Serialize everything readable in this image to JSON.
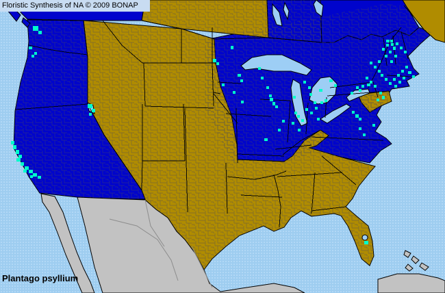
{
  "header": {
    "title": "Floristic Synthesis of NA © 2009 BONAP"
  },
  "species_label": "Plantago psyllium",
  "legend": {
    "state_present_color": "#0004cc",
    "county_present_color": "#00ffcc",
    "state_absent_color": "#b08c00",
    "outside_area_color": "#c2c2c2",
    "water_color": "#9dcef5"
  },
  "map": {
    "regions": {
      "bc": {
        "name": "British Columbia",
        "status": "present"
      },
      "bc-island-1": {
        "name": "Vancouver Island",
        "status": "present"
      },
      "bc-island-2": {
        "name": "Coastal island",
        "status": "present"
      },
      "prairies": {
        "name": "Alberta / Saskatchewan",
        "status": "absent"
      },
      "manitoba": {
        "name": "Manitoba",
        "status": "present"
      },
      "east-canada": {
        "name": "Ontario / Québec",
        "status": "present"
      },
      "maritimes": {
        "name": "New Brunswick / Nova Scotia",
        "status": "absent"
      },
      "pacific": {
        "name": "Washington / Oregon / California",
        "status": "present"
      },
      "midwest-northeast": {
        "name": "Upper Midwest / Northeast / Mid-Atlantic",
        "status": "present"
      },
      "interior-south": {
        "name": "Interior West, Plains, South & Southeast",
        "status": "absent"
      },
      "md-de": {
        "name": "Maryland / Delaware",
        "status": "absent"
      },
      "mexico": {
        "name": "Mexico",
        "status": "outside"
      },
      "baja": {
        "name": "Baja California",
        "status": "outside"
      },
      "cuba": {
        "name": "Cuba",
        "status": "outside"
      },
      "bahama-1": {
        "name": "Bahamas",
        "status": "outside"
      },
      "bahama-2": {
        "name": "Bahamas",
        "status": "outside"
      },
      "bahama-3": {
        "name": "Bahamas",
        "status": "outside"
      },
      "bahama-4": {
        "name": "Bahamas",
        "status": "outside"
      }
    },
    "county_occurrences": [
      [
        48,
        38,
        8,
        7
      ],
      [
        56,
        45,
        5,
        5
      ],
      [
        42,
        68,
        5,
        4
      ],
      [
        50,
        76,
        4,
        4
      ],
      [
        46,
        80,
        4,
        4
      ],
      [
        16,
        206,
        5,
        5
      ],
      [
        19,
        212,
        5,
        6
      ],
      [
        23,
        219,
        5,
        6
      ],
      [
        27,
        226,
        5,
        5
      ],
      [
        24,
        231,
        6,
        5
      ],
      [
        30,
        237,
        5,
        5
      ],
      [
        36,
        243,
        6,
        5
      ],
      [
        42,
        248,
        6,
        5
      ],
      [
        34,
        248,
        5,
        4
      ],
      [
        48,
        253,
        6,
        5
      ],
      [
        55,
        257,
        5,
        4
      ],
      [
        44,
        256,
        4,
        4
      ],
      [
        128,
        152,
        7,
        6
      ],
      [
        134,
        159,
        5,
        5
      ],
      [
        130,
        165,
        4,
        4
      ],
      [
        311,
        86,
        5,
        5
      ],
      [
        316,
        91,
        4,
        4
      ],
      [
        337,
        67,
        4,
        5
      ],
      [
        347,
        108,
        5,
        4
      ],
      [
        351,
        116,
        4,
        4
      ],
      [
        324,
        122,
        4,
        4
      ],
      [
        352,
        147,
        4,
        4
      ],
      [
        340,
        133,
        4,
        4
      ],
      [
        381,
        112,
        4,
        4
      ],
      [
        389,
        126,
        4,
        4
      ],
      [
        377,
        98,
        4,
        4
      ],
      [
        393,
        138,
        4,
        4
      ],
      [
        394,
        143,
        5,
        5
      ],
      [
        398,
        149,
        4,
        5
      ],
      [
        402,
        154,
        4,
        4
      ],
      [
        412,
        175,
        4,
        4
      ],
      [
        406,
        188,
        4,
        4
      ],
      [
        386,
        202,
        5,
        4
      ],
      [
        443,
        118,
        4,
        4
      ],
      [
        450,
        126,
        4,
        4
      ],
      [
        466,
        130,
        5,
        4
      ],
      [
        458,
        148,
        4,
        4
      ],
      [
        446,
        158,
        4,
        4
      ],
      [
        428,
        140,
        4,
        4
      ],
      [
        434,
        168,
        4,
        4
      ],
      [
        440,
        174,
        4,
        4
      ],
      [
        452,
        136,
        4,
        4
      ],
      [
        430,
        163,
        4,
        4
      ],
      [
        426,
        178,
        4,
        4
      ],
      [
        435,
        188,
        4,
        4
      ],
      [
        453,
        163,
        4,
        4
      ],
      [
        460,
        156,
        4,
        4
      ],
      [
        468,
        148,
        4,
        4
      ],
      [
        474,
        145,
        4,
        4
      ],
      [
        463,
        172,
        4,
        4
      ],
      [
        481,
        116,
        5,
        4
      ],
      [
        488,
        123,
        4,
        4
      ],
      [
        564,
        58,
        5,
        4
      ],
      [
        571,
        63,
        4,
        4
      ],
      [
        540,
        90,
        4,
        4
      ],
      [
        546,
        96,
        4,
        4
      ],
      [
        552,
        102,
        4,
        4
      ],
      [
        534,
        112,
        4,
        4
      ],
      [
        540,
        118,
        4,
        4
      ],
      [
        546,
        124,
        4,
        4
      ],
      [
        528,
        124,
        4,
        4
      ],
      [
        552,
        88,
        4,
        4
      ],
      [
        520,
        126,
        4,
        4
      ],
      [
        512,
        134,
        4,
        4
      ],
      [
        558,
        70,
        4,
        4
      ],
      [
        564,
        64,
        4,
        4
      ],
      [
        570,
        58,
        4,
        4
      ],
      [
        562,
        80,
        4,
        4
      ],
      [
        568,
        74,
        4,
        4
      ],
      [
        574,
        68,
        4,
        5
      ],
      [
        576,
        80,
        4,
        4
      ],
      [
        570,
        88,
        4,
        4
      ],
      [
        578,
        62,
        4,
        4
      ],
      [
        584,
        68,
        4,
        4
      ],
      [
        590,
        74,
        4,
        4
      ],
      [
        556,
        108,
        4,
        4
      ],
      [
        562,
        114,
        4,
        4
      ],
      [
        568,
        120,
        4,
        4
      ],
      [
        574,
        114,
        4,
        4
      ],
      [
        580,
        108,
        4,
        4
      ],
      [
        586,
        102,
        4,
        4
      ],
      [
        592,
        96,
        4,
        4
      ],
      [
        596,
        104,
        5,
        4
      ],
      [
        588,
        112,
        4,
        4
      ],
      [
        582,
        118,
        4,
        4
      ],
      [
        576,
        124,
        4,
        4
      ],
      [
        602,
        110,
        4,
        4
      ],
      [
        554,
        134,
        4,
        4
      ],
      [
        558,
        140,
        4,
        5
      ],
      [
        550,
        144,
        4,
        4
      ],
      [
        536,
        122,
        5,
        4
      ],
      [
        524,
        130,
        4,
        4
      ],
      [
        519,
        167,
        5,
        5
      ],
      [
        524,
        172,
        4,
        4
      ],
      [
        514,
        162,
        4,
        4
      ],
      [
        544,
        181,
        4,
        4
      ],
      [
        524,
        186,
        4,
        4
      ],
      [
        530,
        195,
        4,
        4
      ],
      [
        532,
        352,
        6,
        5
      ]
    ]
  }
}
